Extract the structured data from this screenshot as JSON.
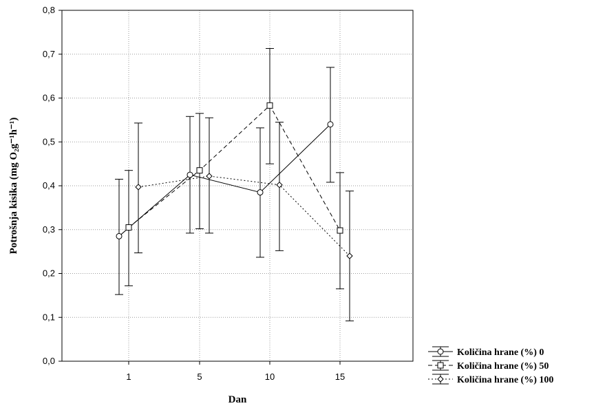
{
  "chart_data": {
    "type": "line",
    "xlabel": "Dan",
    "ylabel": "Potrošnja kisika (mg O₂g⁻¹h⁻¹)",
    "categories": [
      "1",
      "5",
      "10",
      "15"
    ],
    "ylim": [
      0.0,
      0.8
    ],
    "yticks": [
      "0,0",
      "0,1",
      "0,2",
      "0,3",
      "0,4",
      "0,5",
      "0,6",
      "0,7",
      "0,8"
    ],
    "grid": true,
    "legend_position": "bottom-right outside",
    "series": [
      {
        "name": "Količina hrane (%) 0",
        "marker": "circle",
        "line": "solid",
        "values": [
          0.285,
          0.425,
          0.385,
          0.54
        ],
        "err_low": [
          0.152,
          0.292,
          0.237,
          0.408
        ],
        "err_high": [
          0.415,
          0.558,
          0.532,
          0.67
        ]
      },
      {
        "name": "Količina hrane (%) 50",
        "marker": "square",
        "line": "dashed",
        "values": [
          0.305,
          0.435,
          0.583,
          0.298
        ],
        "err_low": [
          0.172,
          0.302,
          0.45,
          0.165
        ],
        "err_high": [
          0.435,
          0.565,
          0.713,
          0.43
        ]
      },
      {
        "name": "Količina hrane (%) 100",
        "marker": "diamond",
        "line": "dotted",
        "values": [
          0.397,
          0.422,
          0.402,
          0.24
        ],
        "err_low": [
          0.247,
          0.292,
          0.252,
          0.092
        ],
        "err_high": [
          0.543,
          0.555,
          0.545,
          0.388
        ]
      }
    ]
  }
}
